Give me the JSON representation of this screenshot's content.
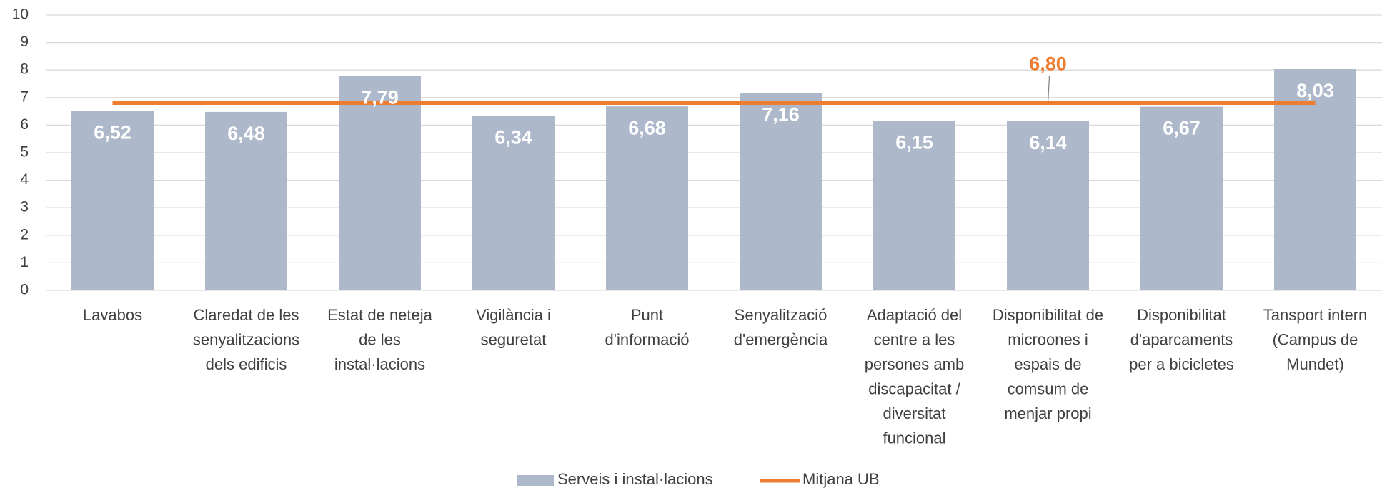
{
  "chart_data": {
    "type": "bar",
    "categories": [
      [
        "Lavabos"
      ],
      [
        "Claredat de les",
        "senyalitzacions",
        "dels edificis"
      ],
      [
        "Estat de neteja",
        "de les",
        "instal·lacions"
      ],
      [
        "Vigilància i",
        "seguretat"
      ],
      [
        "Punt",
        "d'informació"
      ],
      [
        "Senyalització",
        "d'emergència"
      ],
      [
        "Adaptació del",
        "centre a les",
        "persones amb",
        "discapacitat /",
        "diversitat",
        "funcional"
      ],
      [
        "Disponibilitat de",
        "microones i",
        "espais de",
        "comsum de",
        "menjar propi"
      ],
      [
        "Disponibilitat",
        "d'aparcaments",
        "per a bicicletes"
      ],
      [
        "Tansport intern",
        "(Campus de",
        "Mundet)"
      ]
    ],
    "series": [
      {
        "name": "Serveis i instal·lacions",
        "color": "#adb9ca",
        "type": "bar",
        "values": [
          6.52,
          6.48,
          7.79,
          6.34,
          6.68,
          7.16,
          6.15,
          6.14,
          6.67,
          8.03
        ],
        "value_labels": [
          "6,52",
          "6,48",
          "7,79",
          "6,34",
          "6,68",
          "7,16",
          "6,15",
          "6,14",
          "6,67",
          "8,03"
        ]
      },
      {
        "name": "Mitjana UB",
        "color": "#ed7d31",
        "type": "line",
        "values": [
          6.8,
          6.8,
          6.8,
          6.8,
          6.8,
          6.8,
          6.8,
          6.8,
          6.8,
          6.8
        ],
        "value_label": "6,80"
      }
    ],
    "ylim": [
      0,
      10
    ],
    "yticks": [
      0,
      1,
      2,
      3,
      4,
      5,
      6,
      7,
      8,
      9,
      10
    ],
    "grid": true
  }
}
